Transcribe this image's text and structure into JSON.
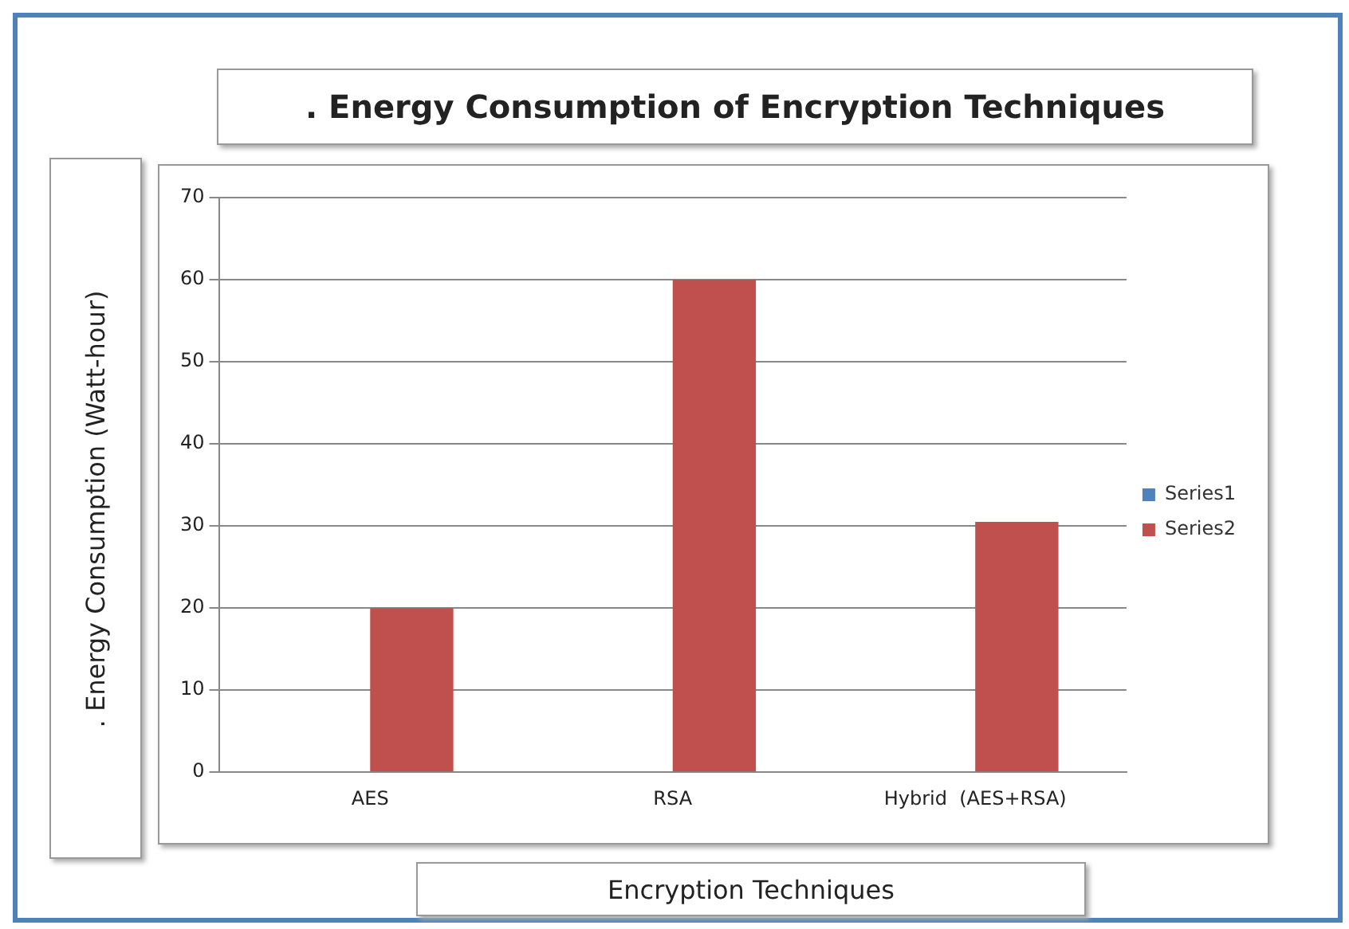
{
  "chart_data": {
    "type": "bar",
    "title": ". Energy Consumption of Encryption Techniques",
    "xlabel": "Encryption Techniques",
    "ylabel": ". Energy Consumption (Watt-hour)",
    "categories": [
      "AES",
      "RSA",
      "Hybrid  (AES+RSA)"
    ],
    "series": [
      {
        "name": "Series1",
        "color": "#4f81bd",
        "values": [
          0,
          0,
          0
        ]
      },
      {
        "name": "Series2",
        "color": "#c0504d",
        "values": [
          20,
          60,
          30.5
        ]
      }
    ],
    "ylim": [
      0,
      70
    ],
    "yticks": [
      0,
      10,
      20,
      30,
      40,
      50,
      60,
      70
    ],
    "grid": "y",
    "legend": "right"
  }
}
